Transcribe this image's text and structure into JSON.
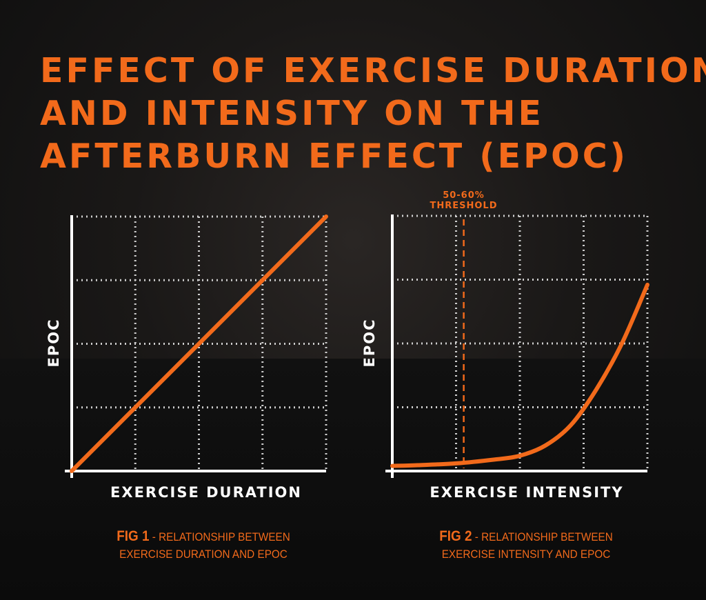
{
  "title_lines": [
    "EFFECT OF EXERCISE DURATION",
    "AND INTENSITY ON THE",
    "AFTERBURN EFFECT (EPOC)"
  ],
  "colors": {
    "accent": "#f26a1b",
    "axis": "#ffffff",
    "grid": "#cfcfcf",
    "background": "#121212"
  },
  "chart_data": [
    {
      "type": "line",
      "xlabel": "EXERCISE DURATION",
      "ylabel": "EPOC",
      "xlim": [
        0,
        100
      ],
      "ylim": [
        0,
        100
      ],
      "grid": true,
      "series": [
        {
          "x": [
            0,
            100
          ],
          "y": [
            0,
            100
          ]
        }
      ],
      "caption": {
        "fig": "FIG 1",
        "text_line1": "- RELATIONSHIP BETWEEN",
        "text_line2": "EXERCISE DURATION AND EPOC"
      }
    },
    {
      "type": "line",
      "xlabel": "EXERCISE INTENSITY",
      "ylabel": "EPOC",
      "xlim": [
        0,
        100
      ],
      "ylim": [
        0,
        100
      ],
      "grid": true,
      "series": [
        {
          "x": [
            0,
            10,
            25,
            40,
            50,
            60,
            70,
            80,
            90,
            100
          ],
          "y": [
            2,
            2.3,
            3,
            4.5,
            6,
            10,
            18,
            32,
            50,
            73
          ]
        }
      ],
      "threshold": {
        "x": 28,
        "label_line1": "50-60%",
        "label_line2": "THRESHOLD"
      },
      "caption": {
        "fig": "FIG 2",
        "text_line1": "- RELATIONSHIP BETWEEN",
        "text_line2": "EXERCISE INTENSITY AND EPOC"
      }
    }
  ]
}
